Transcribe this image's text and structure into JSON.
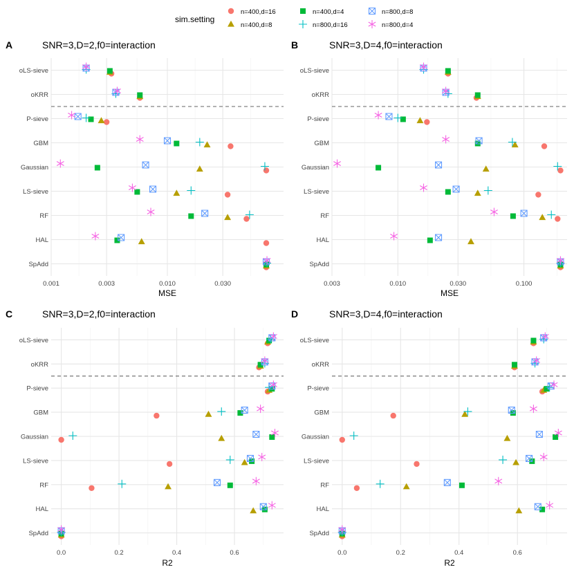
{
  "legend": {
    "title": "sim.setting",
    "placement": "top",
    "entries": [
      {
        "label": "n=400,d=16",
        "color": "#F8766D",
        "shape": "circle"
      },
      {
        "label": "n=400,d=8",
        "color": "#B79F00",
        "shape": "triangle"
      },
      {
        "label": "n=400,d=4",
        "color": "#00BA38",
        "shape": "square"
      },
      {
        "label": "n=800,d=16",
        "color": "#00BFC4",
        "shape": "plus"
      },
      {
        "label": "n=800,d=8",
        "color": "#619CFF",
        "shape": "boxcross"
      },
      {
        "label": "n=800,d=4",
        "color": "#F564E3",
        "shape": "asterisk"
      }
    ]
  },
  "chart_data": [
    {
      "panel": "A",
      "type": "scatter",
      "title": "SNR=3,D=2,f0=interaction",
      "xlabel": "MSE",
      "xscale": "log",
      "xlim": [
        0.001,
        0.1
      ],
      "xticks": [
        0.001,
        0.003,
        0.01,
        0.03
      ],
      "xtick_labels": [
        "0.001",
        "0.003",
        "0.010",
        "0.030"
      ],
      "categories": [
        "oLS-sieve",
        "oKRR",
        "P-sieve",
        "GBM",
        "Gaussian",
        "LS-sieve",
        "RF",
        "HAL",
        "SpAdd"
      ],
      "separator_after": "oKRR",
      "grid": true,
      "series": [
        {
          "name": "n=400,d=16",
          "values": [
            0.0033,
            0.0058,
            0.003,
            0.035,
            0.071,
            0.033,
            0.048,
            0.071,
            0.071
          ]
        },
        {
          "name": "n=400,d=8",
          "values": [
            0.0032,
            0.0058,
            0.0027,
            0.022,
            0.019,
            0.012,
            0.033,
            0.006,
            0.071
          ]
        },
        {
          "name": "n=400,d=4",
          "values": [
            0.0032,
            0.0058,
            0.0022,
            0.012,
            0.0025,
            0.0055,
            0.016,
            0.0037,
            0.071
          ]
        },
        {
          "name": "n=800,d=16",
          "values": [
            0.002,
            0.0036,
            0.002,
            0.019,
            0.069,
            0.016,
            0.051,
            null,
            0.072
          ]
        },
        {
          "name": "n=800,d=8",
          "values": [
            0.002,
            0.0036,
            0.0017,
            0.01,
            0.0065,
            0.0075,
            0.021,
            0.004,
            0.071
          ]
        },
        {
          "name": "n=800,d=4",
          "values": [
            0.002,
            0.0037,
            0.0015,
            0.0058,
            0.0012,
            0.005,
            0.0072,
            0.0024,
            0.072
          ]
        }
      ]
    },
    {
      "panel": "B",
      "type": "scatter",
      "title": "SNR=3,D=4,f0=interaction",
      "xlabel": "MSE",
      "xscale": "log",
      "xlim": [
        0.003,
        0.22
      ],
      "xticks": [
        0.003,
        0.01,
        0.03,
        0.1
      ],
      "xtick_labels": [
        "0.003",
        "0.010",
        "0.030",
        "0.100"
      ],
      "categories": [
        "oLS-sieve",
        "oKRR",
        "P-sieve",
        "GBM",
        "Gaussian",
        "LS-sieve",
        "RF",
        "HAL",
        "SpAdd"
      ],
      "separator_after": "oKRR",
      "grid": true,
      "series": [
        {
          "name": "n=400,d=16",
          "values": [
            0.025,
            0.042,
            0.017,
            0.145,
            0.195,
            0.13,
            0.185,
            null,
            0.195
          ]
        },
        {
          "name": "n=400,d=8",
          "values": [
            0.025,
            0.043,
            0.015,
            0.085,
            0.05,
            0.043,
            0.14,
            0.038,
            0.195
          ]
        },
        {
          "name": "n=400,d=4",
          "values": [
            0.025,
            0.043,
            0.011,
            0.043,
            0.007,
            0.025,
            0.082,
            0.018,
            0.195
          ]
        },
        {
          "name": "n=800,d=16",
          "values": [
            0.016,
            0.025,
            0.01,
            0.081,
            0.185,
            0.052,
            0.165,
            null,
            0.195
          ]
        },
        {
          "name": "n=800,d=8",
          "values": [
            0.016,
            0.024,
            0.0085,
            0.044,
            0.021,
            0.029,
            0.1,
            0.021,
            0.195
          ]
        },
        {
          "name": "n=800,d=4",
          "values": [
            0.016,
            0.024,
            0.007,
            0.024,
            0.0033,
            0.016,
            0.058,
            0.0093,
            0.195
          ]
        }
      ]
    },
    {
      "panel": "C",
      "type": "scatter",
      "title": "SNR=3,D=2,f0=interaction",
      "xlabel": "R2",
      "xscale": "linear",
      "xlim": [
        -0.035,
        0.77
      ],
      "xticks": [
        0.0,
        0.2,
        0.4,
        0.6
      ],
      "xtick_labels": [
        "0.0",
        "0.2",
        "0.4",
        "0.6"
      ],
      "categories": [
        "oLS-sieve",
        "oKRR",
        "P-sieve",
        "GBM",
        "Gaussian",
        "LS-sieve",
        "RF",
        "HAL",
        "SpAdd"
      ],
      "separator_after": "oKRR",
      "grid": true,
      "series": [
        {
          "name": "n=400,d=16",
          "values": [
            0.715,
            0.685,
            0.715,
            0.33,
            0.0,
            0.375,
            0.105,
            null,
            0.0
          ]
        },
        {
          "name": "n=400,d=8",
          "values": [
            0.715,
            0.69,
            0.72,
            0.51,
            0.555,
            0.635,
            0.37,
            0.665,
            0.0
          ]
        },
        {
          "name": "n=400,d=4",
          "values": [
            0.72,
            0.69,
            0.73,
            0.62,
            0.73,
            0.66,
            0.585,
            0.705,
            0.0
          ]
        },
        {
          "name": "n=800,d=16",
          "values": [
            0.725,
            0.705,
            0.72,
            0.555,
            0.04,
            0.585,
            0.21,
            null,
            0.0
          ]
        },
        {
          "name": "n=800,d=8",
          "values": [
            0.73,
            0.705,
            0.73,
            0.635,
            0.675,
            0.655,
            0.54,
            0.7,
            0.0
          ]
        },
        {
          "name": "n=800,d=4",
          "values": [
            0.735,
            0.705,
            0.735,
            0.69,
            0.74,
            0.695,
            0.675,
            0.73,
            0.0
          ]
        }
      ]
    },
    {
      "panel": "D",
      "type": "scatter",
      "title": "SNR=3,D=4,f0=interaction",
      "xlabel": "R2",
      "xscale": "linear",
      "xlim": [
        -0.035,
        0.77
      ],
      "xticks": [
        0.0,
        0.2,
        0.4,
        0.6
      ],
      "xtick_labels": [
        "0.0",
        "0.2",
        "0.4",
        "0.6"
      ],
      "categories": [
        "oLS-sieve",
        "oKRR",
        "P-sieve",
        "GBM",
        "Gaussian",
        "LS-sieve",
        "RF",
        "HAL",
        "SpAdd"
      ],
      "separator_after": "oKRR",
      "grid": true,
      "series": [
        {
          "name": "n=400,d=16",
          "values": [
            0.655,
            0.59,
            0.685,
            0.175,
            0.0,
            0.255,
            0.05,
            null,
            0.0
          ]
        },
        {
          "name": "n=400,d=8",
          "values": [
            0.655,
            0.59,
            0.69,
            0.42,
            0.565,
            0.595,
            0.22,
            0.605,
            0.0
          ]
        },
        {
          "name": "n=400,d=4",
          "values": [
            0.655,
            0.59,
            0.7,
            0.585,
            0.73,
            0.65,
            0.41,
            0.685,
            0.0
          ]
        },
        {
          "name": "n=800,d=16",
          "values": [
            0.69,
            0.66,
            0.71,
            0.43,
            0.04,
            0.55,
            0.13,
            null,
            0.0
          ]
        },
        {
          "name": "n=800,d=8",
          "values": [
            0.69,
            0.66,
            0.715,
            0.58,
            0.675,
            0.64,
            0.36,
            0.67,
            0.0
          ]
        },
        {
          "name": "n=800,d=4",
          "values": [
            0.695,
            0.665,
            0.725,
            0.655,
            0.74,
            0.69,
            0.535,
            0.71,
            0.0
          ]
        }
      ]
    }
  ]
}
